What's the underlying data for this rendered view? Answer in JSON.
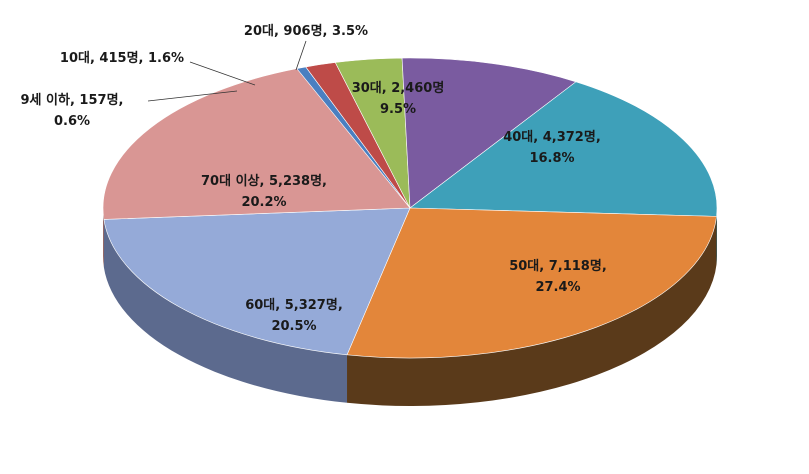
{
  "chart_data": {
    "type": "pie",
    "title": "",
    "slices": [
      {
        "category": "9세 이하",
        "count_label": "157명",
        "percent": 0.6,
        "color": "#4a7fc1",
        "side_color": "#2e527e"
      },
      {
        "category": "10대",
        "count_label": "415명",
        "percent": 1.6,
        "color": "#be4b48",
        "side_color": "#7a2e2c"
      },
      {
        "category": "20대",
        "count_label": "906명",
        "percent": 3.5,
        "color": "#9bbb59",
        "side_color": "#627a36"
      },
      {
        "category": "30대",
        "count_label": "2,460명",
        "percent": 9.5,
        "color": "#7a5ba0",
        "side_color": "#4d3866"
      },
      {
        "category": "40대",
        "count_label": "4,372명",
        "percent": 16.8,
        "color": "#3ea0b9",
        "side_color": "#276676"
      },
      {
        "category": "50대",
        "count_label": "7,118명",
        "percent": 27.4,
        "color": "#e3863a",
        "side_color": "#5a3a1a"
      },
      {
        "category": "60대",
        "count_label": "5,327명",
        "percent": 20.5,
        "color": "#95aad8",
        "side_color": "#5c6a8e"
      },
      {
        "category": "70대 이상",
        "count_label": "5,238명",
        "percent": 20.2,
        "color": "#d99694",
        "side_color": "#8a5a58"
      }
    ],
    "labels": [
      {
        "line1": "9세 이하, 157명,",
        "line2": "0.6%"
      },
      {
        "line1": "10대, 415명, 1.6%",
        "line2": ""
      },
      {
        "line1": "20대, 906명, 3.5%",
        "line2": ""
      },
      {
        "line1": "30대, 2,460명",
        "line2": "9.5%"
      },
      {
        "line1": "40대, 4,372명,",
        "line2": "16.8%"
      },
      {
        "line1": "50대, 7,118명,",
        "line2": "27.4%"
      },
      {
        "line1": "60대, 5,327명,",
        "line2": "20.5%"
      },
      {
        "line1": "70대 이상, 5,238명,",
        "line2": "20.2%"
      }
    ]
  }
}
